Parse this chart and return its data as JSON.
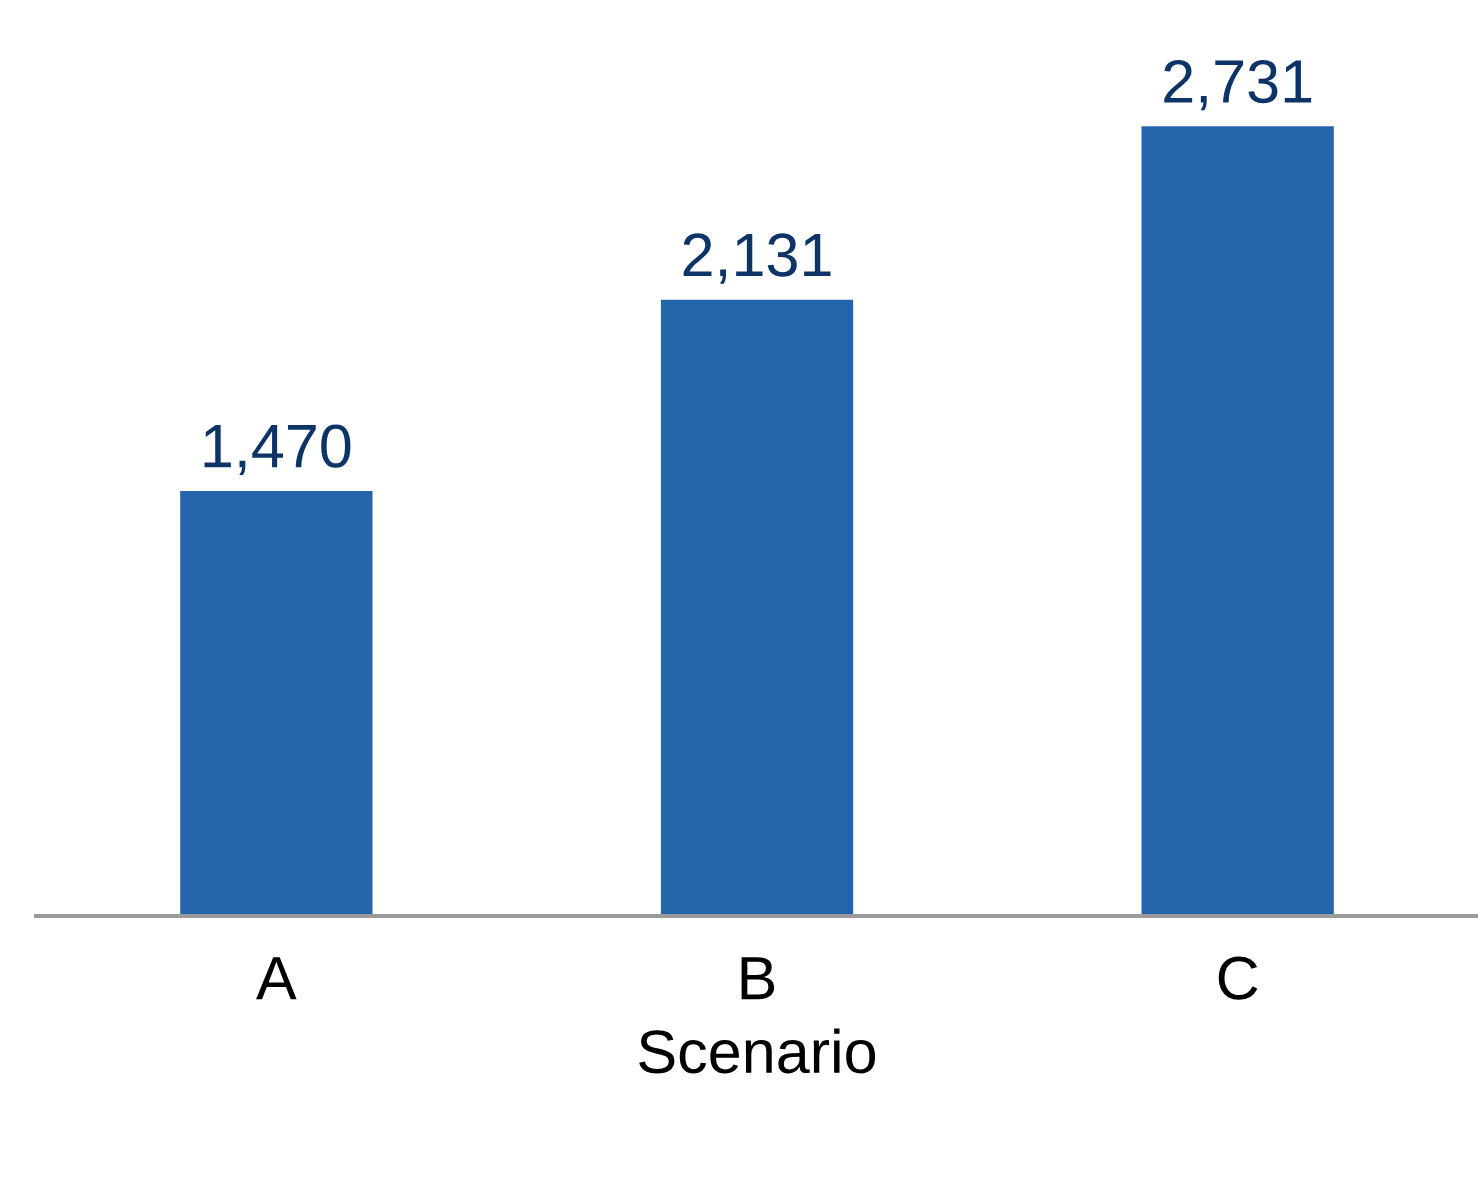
{
  "chart_data": {
    "type": "bar",
    "xlabel": "Scenario",
    "categories": [
      "A",
      "B",
      "C"
    ],
    "values": [
      1470,
      2131,
      2731
    ],
    "color": "#2464ab",
    "data_labels": true,
    "value_labels": [
      "1,470",
      "2,131",
      "2,731"
    ],
    "grid": false,
    "legend": false
  }
}
